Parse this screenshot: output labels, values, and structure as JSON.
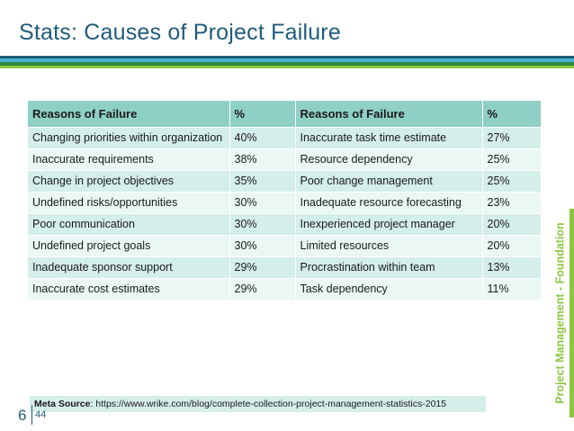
{
  "title": "Stats: Causes of Project Failure",
  "colors": {
    "title": "#1f5c7a",
    "header_bg": "#8fd0c6",
    "row_dark": "#d4eeea",
    "row_light": "#eaf7f5",
    "accent_green": "#8cc63f"
  },
  "table": {
    "headers": [
      "Reasons of Failure",
      "%",
      "Reasons of Failure",
      "%"
    ],
    "rows": [
      [
        "Changing priorities within organization",
        "40%",
        "Inaccurate task time estimate",
        "27%"
      ],
      [
        "Inaccurate requirements",
        "38%",
        "Resource dependency",
        "25%"
      ],
      [
        "Change in project objectives",
        "35%",
        "Poor change management",
        "25%"
      ],
      [
        "Undefined risks/opportunities",
        "30%",
        "Inadequate resource forecasting",
        "23%"
      ],
      [
        "Poor communication",
        "30%",
        "Inexperienced project manager",
        "20%"
      ],
      [
        "Undefined project goals",
        "30%",
        "Limited resources",
        "20%"
      ],
      [
        "Inadequate sponsor support",
        "29%",
        "Procrastination within team",
        "13%"
      ],
      [
        "Inaccurate cost estimates",
        "29%",
        "Task dependency",
        "11%"
      ]
    ]
  },
  "source": {
    "label": "Meta Source",
    "url": ": https://www.wrike.com/blog/complete-collection-project-management-statistics-2015"
  },
  "side_label": "Project Management - Foundation",
  "footer": {
    "page_number": "6",
    "slide_number": "44"
  }
}
